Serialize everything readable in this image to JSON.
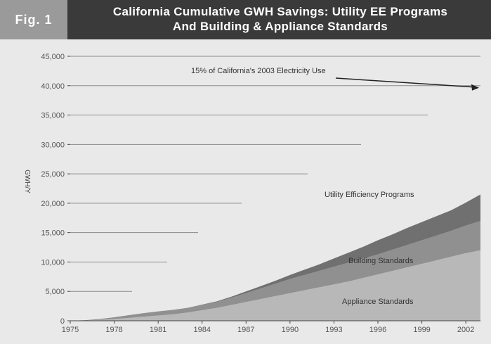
{
  "header": {
    "fig_label": "Fig. 1",
    "title_line1": "California Cumulative GWH Savings: Utility EE Programs",
    "title_line2": "And Building & Appliance Standards"
  },
  "colors": {
    "header_bg": "#3a3a3a",
    "fig_bg": "#9a9a9a",
    "appliance": "#b8b8b8",
    "building": "#909090",
    "utility": "#707070",
    "gridline": "#8a8a8a"
  },
  "chart_data": {
    "type": "area",
    "stacked": true,
    "title": "California Cumulative GWH Savings: Utility EE Programs And Building & Appliance Standards",
    "xlabel": "",
    "ylabel": "GWH/Y",
    "xlim": [
      1975,
      2003
    ],
    "ylim": [
      0,
      45000
    ],
    "x_ticks": [
      1975,
      1978,
      1981,
      1984,
      1987,
      1990,
      1993,
      1996,
      1999,
      2002
    ],
    "y_ticks": [
      0,
      5000,
      10000,
      15000,
      20000,
      25000,
      30000,
      35000,
      40000,
      45000
    ],
    "y_tick_labels": [
      "0",
      "5,000",
      "10,000",
      "15,000",
      "20,000",
      "25,000",
      "30,000",
      "35,000",
      "40,000",
      "45,000"
    ],
    "x": [
      1975,
      1976,
      1977,
      1978,
      1979,
      1980,
      1981,
      1982,
      1983,
      1984,
      1985,
      1986,
      1987,
      1988,
      1989,
      1990,
      1991,
      1992,
      1993,
      1994,
      1995,
      1996,
      1997,
      1998,
      1999,
      2000,
      2001,
      2002,
      2003
    ],
    "series": [
      {
        "name": "Appliance Standards",
        "values": [
          0,
          50,
          150,
          300,
          500,
          700,
          900,
          1100,
          1400,
          1800,
          2200,
          2700,
          3200,
          3700,
          4200,
          4700,
          5200,
          5700,
          6200,
          6700,
          7300,
          7900,
          8500,
          9100,
          9700,
          10300,
          10900,
          11500,
          12000
        ]
      },
      {
        "name": "Building Standards",
        "values": [
          0,
          50,
          150,
          300,
          450,
          600,
          700,
          750,
          800,
          900,
          1000,
          1200,
          1500,
          1800,
          2100,
          2400,
          2600,
          2800,
          3000,
          3200,
          3300,
          3400,
          3600,
          3800,
          4000,
          4200,
          4400,
          4700,
          5000
        ]
      },
      {
        "name": "Utility Efficiency Programs",
        "values": [
          0,
          0,
          0,
          0,
          0,
          0,
          0,
          0,
          0,
          50,
          100,
          200,
          300,
          400,
          500,
          700,
          900,
          1100,
          1400,
          1700,
          2000,
          2400,
          2600,
          2900,
          3100,
          3300,
          3500,
          3900,
          4500
        ]
      }
    ],
    "annotations": [
      {
        "text": "15% of California's 2003 Electricity Use",
        "value": 40000,
        "year": 2003
      },
      {
        "text": "Utility Efficiency Programs"
      },
      {
        "text": "Building Standards"
      },
      {
        "text": "Appliance Standards"
      }
    ]
  }
}
